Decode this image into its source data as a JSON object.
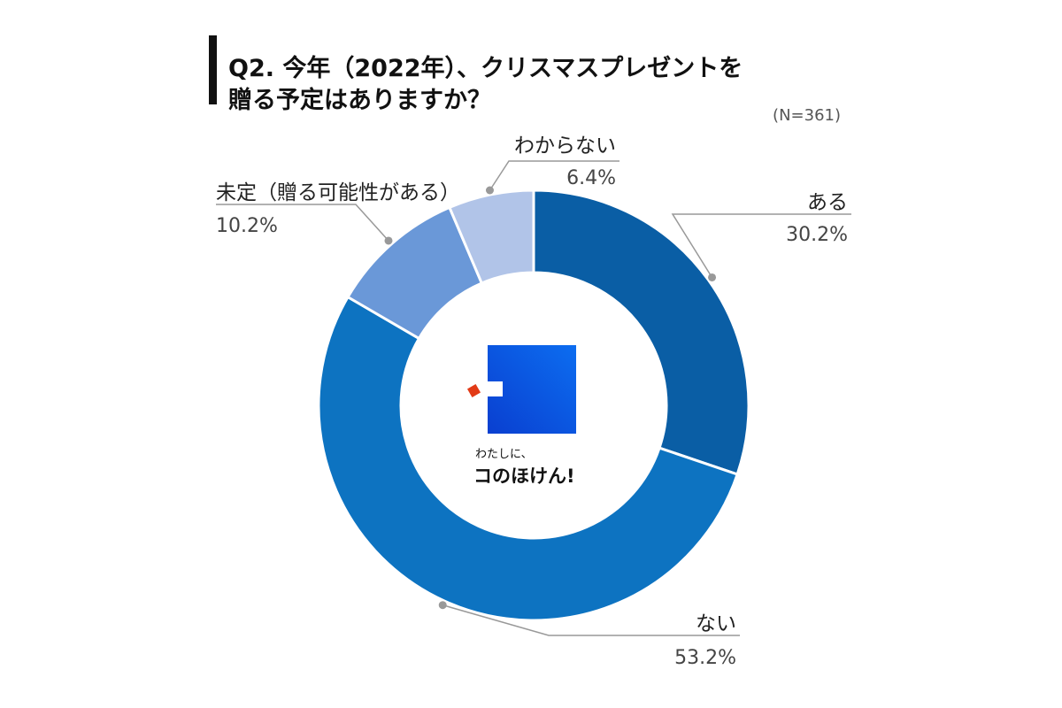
{
  "title": "Q2. 今年（2022年）、クリスマスプレゼントを\n贈る予定はありますか？",
  "sample_size": "(N=361)",
  "logo": {
    "line1": "わたしに、",
    "line2": "コのほけん!",
    "icon": "logo-square-icon"
  },
  "chart_data": {
    "type": "pie",
    "donut": true,
    "title": "Q2. 今年（2022年）、クリスマスプレゼントを贈る予定はありますか？",
    "n_label": "(N=361)",
    "slices": [
      {
        "label": "ある",
        "value": 30.2,
        "display": "30.2%",
        "color": "#0a5ea5"
      },
      {
        "label": "ない",
        "value": 53.2,
        "display": "53.2%",
        "color": "#0d73c1"
      },
      {
        "label": "未定（贈る可能性がある）",
        "value": 10.2,
        "display": "10.2%",
        "color": "#6a98d8"
      },
      {
        "label": "わからない",
        "value": 6.4,
        "display": "6.4%",
        "color": "#b1c4e8"
      }
    ],
    "legend": "none"
  },
  "colors": {
    "leader_line": "#999999",
    "separator": "#ffffff",
    "logo_blue": "#0a4fd6",
    "logo_red": "#e23a16"
  }
}
